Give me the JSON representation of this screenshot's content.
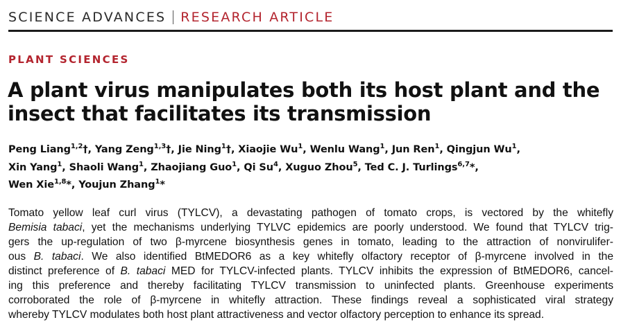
{
  "header": {
    "journal": "SCIENCE ADVANCES",
    "article_type": "RESEARCH ARTICLE",
    "accent_color": "#b3242e"
  },
  "section": "PLANT SCIENCES",
  "title": "A plant virus manipulates both its host plant and the insect that facilitates its transmission",
  "authors": [
    {
      "name": "Peng Liang",
      "sup": "1,2",
      "mark": "†"
    },
    {
      "name": "Yang Zeng",
      "sup": "1,3",
      "mark": "†"
    },
    {
      "name": "Jie Ning",
      "sup": "1",
      "mark": "†"
    },
    {
      "name": "Xiaojie Wu",
      "sup": "1",
      "mark": ""
    },
    {
      "name": "Wenlu Wang",
      "sup": "1",
      "mark": ""
    },
    {
      "name": "Jun Ren",
      "sup": "1",
      "mark": ""
    },
    {
      "name": "Qingjun Wu",
      "sup": "1",
      "mark": ""
    },
    {
      "name": "Xin Yang",
      "sup": "1",
      "mark": ""
    },
    {
      "name": "Shaoli Wang",
      "sup": "1",
      "mark": ""
    },
    {
      "name": "Zhaojiang Guo",
      "sup": "1",
      "mark": ""
    },
    {
      "name": "Qi Su",
      "sup": "4",
      "mark": ""
    },
    {
      "name": "Xuguo Zhou",
      "sup": "5",
      "mark": ""
    },
    {
      "name": "Ted C. J. Turlings",
      "sup": "6,7",
      "mark": "*"
    },
    {
      "name": "Wen Xie",
      "sup": "1,8",
      "mark": "*"
    },
    {
      "name": "Youjun Zhang",
      "sup": "1",
      "mark": "*"
    }
  ],
  "abstract": {
    "lines": [
      [
        {
          "t": "Tomato yellow leaf curl virus (TYLCV), a devastating pathogen of tomato crops, is vectored by the whitefly"
        }
      ],
      [
        {
          "t": "Bemisia tabaci",
          "i": true
        },
        {
          "t": ", yet the mechanisms underlying TYLVC epidemics are poorly understood. We found that TYLCV trig-"
        }
      ],
      [
        {
          "t": "gers the up-regulation of two β-myrcene biosynthesis genes in tomato, leading to the attraction of nonvirulifer-"
        }
      ],
      [
        {
          "t": "ous "
        },
        {
          "t": "B. tabaci",
          "i": true
        },
        {
          "t": ". We also identified BtMEDOR6 as a key whitefly olfactory receptor of β-myrcene involved in the"
        }
      ],
      [
        {
          "t": "distinct preference of "
        },
        {
          "t": "B. tabaci",
          "i": true
        },
        {
          "t": " MED for TYLCV-infected plants. TYLCV inhibits the expression of BtMEDOR6, cancel-"
        }
      ],
      [
        {
          "t": "ing this preference and thereby facilitating TYLCV transmission to uninfected plants. Greenhouse experiments"
        }
      ],
      [
        {
          "t": "corroborated the role of β-myrcene in whitefly attraction. These findings reveal a sophisticated viral strategy"
        }
      ],
      [
        {
          "t": "whereby TYLCV modulates both host plant attractiveness and vector olfactory perception to enhance its spread."
        }
      ]
    ]
  }
}
